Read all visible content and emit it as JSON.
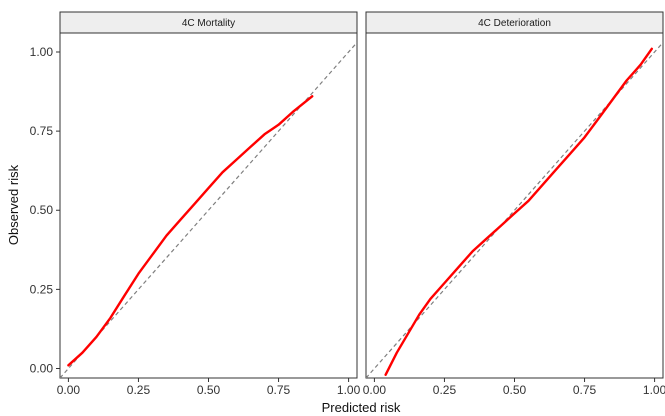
{
  "chart_data": {
    "type": "line",
    "xlabel": "Predicted risk",
    "ylabel": "Observed risk",
    "xlim": [
      -0.03,
      1.03
    ],
    "ylim": [
      -0.03,
      1.06
    ],
    "x_ticks": [
      "0.00",
      "0.25",
      "0.50",
      "0.75",
      "1.00"
    ],
    "y_ticks": [
      "0.00",
      "0.25",
      "0.50",
      "0.75",
      "1.00"
    ],
    "x_tick_values": [
      0,
      0.25,
      0.5,
      0.75,
      1.0
    ],
    "y_tick_values": [
      0,
      0.25,
      0.5,
      0.75,
      1.0
    ],
    "reference_line": {
      "style": "dashed",
      "color": "#7f7f7f",
      "slope": 1,
      "intercept": 0
    },
    "series_color": "#ff0000",
    "strip_fill": "#eeeeee",
    "grid": false,
    "panels": [
      {
        "label": "4C Mortality",
        "series": [
          {
            "x": [
              0.0,
              0.05,
              0.1,
              0.15,
              0.2,
              0.25,
              0.3,
              0.35,
              0.4,
              0.45,
              0.5,
              0.55,
              0.6,
              0.65,
              0.7,
              0.75,
              0.8,
              0.87
            ],
            "y": [
              0.01,
              0.05,
              0.1,
              0.16,
              0.23,
              0.3,
              0.36,
              0.42,
              0.47,
              0.52,
              0.57,
              0.62,
              0.66,
              0.7,
              0.74,
              0.77,
              0.81,
              0.86
            ]
          }
        ]
      },
      {
        "label": "4C Deterioration",
        "series": [
          {
            "x": [
              0.04,
              0.08,
              0.12,
              0.16,
              0.2,
              0.25,
              0.3,
              0.35,
              0.4,
              0.45,
              0.5,
              0.55,
              0.6,
              0.65,
              0.7,
              0.75,
              0.8,
              0.85,
              0.9,
              0.95,
              0.99
            ],
            "y": [
              -0.02,
              0.05,
              0.11,
              0.17,
              0.22,
              0.27,
              0.32,
              0.37,
              0.41,
              0.45,
              0.49,
              0.53,
              0.58,
              0.63,
              0.68,
              0.73,
              0.79,
              0.85,
              0.91,
              0.96,
              1.01
            ]
          }
        ]
      }
    ]
  }
}
